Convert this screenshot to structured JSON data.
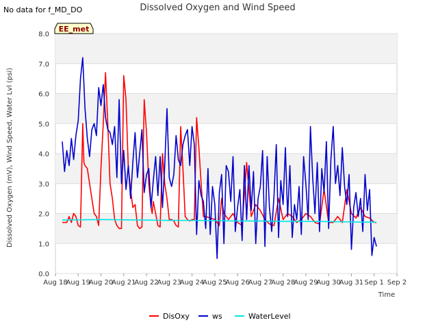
{
  "header": {
    "no_data_note": "No data for f_MD_DO",
    "badge": "EE_met"
  },
  "chart_data": {
    "type": "line",
    "title": "Dissolved Oxygen and Wind Speed",
    "xlabel": "Time",
    "ylabel": "Dissolved Oxygen (mV), Wind Speed, Water Lvl (psi)",
    "ylim": [
      0,
      8
    ],
    "xlim": [
      0,
      15
    ],
    "yticks": [
      "0.0",
      "1.0",
      "2.0",
      "3.0",
      "4.0",
      "5.0",
      "6.0",
      "7.0",
      "8.0"
    ],
    "xticks": [
      "Aug 18",
      "Aug 19",
      "Aug 20",
      "Aug 21",
      "Aug 22",
      "Aug 23",
      "Aug 24",
      "Aug 25",
      "Aug 26",
      "Aug 27",
      "Aug 28",
      "Aug 29",
      "Aug 30",
      "Aug 31",
      "Sep 1",
      "Sep 2"
    ],
    "grid": true,
    "legend_position": "bottom",
    "series": [
      {
        "name": "DisOxy",
        "color": "#ff0000",
        "x": [
          0.3,
          0.5,
          0.6,
          0.7,
          0.8,
          0.9,
          1.0,
          1.1,
          1.2,
          1.25,
          1.3,
          1.4,
          1.5,
          1.6,
          1.7,
          1.8,
          1.9,
          2.0,
          2.1,
          2.2,
          2.3,
          2.4,
          2.5,
          2.6,
          2.7,
          2.8,
          2.9,
          3.0,
          3.1,
          3.2,
          3.25,
          3.3,
          3.4,
          3.5,
          3.6,
          3.7,
          3.8,
          3.9,
          4.0,
          4.1,
          4.2,
          4.25,
          4.3,
          4.4,
          4.5,
          4.6,
          4.7,
          4.8,
          4.9,
          5.0,
          5.1,
          5.2,
          5.3,
          5.4,
          5.5,
          5.6,
          5.7,
          5.8,
          5.9,
          6.0,
          6.1,
          6.2,
          6.3,
          6.4,
          6.5,
          6.6,
          6.8,
          7.0,
          7.1,
          7.2,
          7.3,
          7.4,
          7.5,
          7.6,
          7.8,
          8.0,
          8.2,
          8.4,
          8.6,
          8.8,
          9.0,
          9.2,
          9.4,
          9.6,
          9.8,
          10.0,
          10.2,
          10.4,
          10.6,
          10.8,
          11.0,
          11.2,
          11.4,
          11.6,
          11.8,
          12.0,
          12.2,
          12.4,
          12.6,
          12.8,
          13.0,
          13.2,
          13.4,
          13.6,
          13.8,
          14.0,
          14.1
        ],
        "values": [
          1.7,
          1.7,
          1.9,
          1.7,
          2.0,
          1.9,
          1.6,
          1.55,
          5.0,
          3.7,
          3.6,
          3.5,
          3.0,
          2.5,
          2.0,
          1.9,
          1.6,
          3.5,
          5.0,
          6.7,
          5.0,
          3.0,
          2.5,
          1.8,
          1.6,
          1.5,
          1.5,
          6.6,
          5.8,
          3.5,
          3.2,
          2.8,
          2.2,
          2.3,
          1.6,
          1.5,
          1.55,
          5.8,
          4.7,
          3.0,
          2.2,
          2.0,
          2.4,
          2.0,
          1.6,
          1.55,
          4.0,
          3.0,
          2.5,
          1.8,
          1.8,
          1.75,
          1.6,
          1.55,
          4.9,
          3.5,
          1.9,
          1.8,
          1.75,
          1.8,
          1.8,
          5.2,
          4.2,
          3.0,
          1.9,
          1.9,
          1.85,
          1.8,
          1.7,
          1.6,
          2.5,
          2.0,
          1.9,
          1.8,
          2.0,
          1.7,
          1.6,
          3.7,
          1.9,
          2.3,
          2.1,
          1.8,
          1.65,
          1.6,
          2.5,
          1.8,
          2.0,
          1.9,
          1.7,
          1.8,
          2.0,
          1.9,
          1.7,
          1.65,
          2.8,
          1.7,
          1.7,
          1.9,
          1.7,
          2.8,
          2.0,
          1.85,
          2.2,
          1.9,
          1.85,
          1.7,
          1.7
        ]
      },
      {
        "name": "ws",
        "color": "#0000cc",
        "x": [
          0.3,
          0.4,
          0.5,
          0.6,
          0.7,
          0.8,
          0.9,
          1.0,
          1.1,
          1.2,
          1.3,
          1.4,
          1.5,
          1.6,
          1.7,
          1.8,
          1.9,
          2.0,
          2.1,
          2.2,
          2.3,
          2.4,
          2.5,
          2.6,
          2.7,
          2.8,
          2.9,
          3.0,
          3.1,
          3.2,
          3.3,
          3.4,
          3.5,
          3.6,
          3.7,
          3.8,
          3.9,
          4.0,
          4.1,
          4.2,
          4.3,
          4.4,
          4.5,
          4.6,
          4.7,
          4.8,
          4.9,
          5.0,
          5.1,
          5.2,
          5.3,
          5.4,
          5.5,
          5.6,
          5.7,
          5.8,
          5.9,
          6.0,
          6.1,
          6.2,
          6.3,
          6.4,
          6.5,
          6.6,
          6.7,
          6.8,
          6.9,
          7.0,
          7.1,
          7.2,
          7.3,
          7.4,
          7.5,
          7.6,
          7.7,
          7.8,
          7.9,
          8.0,
          8.1,
          8.2,
          8.3,
          8.4,
          8.5,
          8.6,
          8.7,
          8.8,
          8.9,
          9.0,
          9.1,
          9.2,
          9.3,
          9.4,
          9.5,
          9.6,
          9.7,
          9.8,
          9.9,
          10.0,
          10.1,
          10.2,
          10.3,
          10.4,
          10.5,
          10.6,
          10.7,
          10.8,
          10.9,
          11.0,
          11.1,
          11.2,
          11.3,
          11.4,
          11.5,
          11.6,
          11.7,
          11.8,
          11.9,
          12.0,
          12.1,
          12.2,
          12.3,
          12.4,
          12.5,
          12.6,
          12.7,
          12.8,
          12.9,
          13.0,
          13.1,
          13.2,
          13.3,
          13.4,
          13.5,
          13.6,
          13.7,
          13.8,
          13.9,
          14.0,
          14.1
        ],
        "values": [
          4.4,
          3.4,
          4.1,
          3.6,
          4.5,
          3.8,
          4.6,
          5.1,
          6.5,
          7.2,
          5.5,
          4.5,
          3.9,
          4.8,
          5.0,
          4.6,
          6.2,
          5.6,
          6.3,
          5.2,
          4.8,
          4.7,
          4.3,
          4.9,
          3.2,
          5.8,
          3.0,
          4.1,
          2.8,
          3.6,
          2.5,
          3.7,
          4.7,
          3.2,
          4.0,
          4.8,
          2.7,
          3.3,
          3.5,
          2.2,
          3.1,
          3.9,
          2.6,
          3.9,
          2.2,
          3.6,
          5.5,
          3.2,
          2.9,
          3.3,
          4.6,
          3.8,
          3.6,
          4.3,
          4.6,
          4.8,
          3.6,
          4.9,
          4.3,
          1.3,
          3.1,
          2.6,
          2.4,
          1.5,
          3.5,
          1.3,
          2.9,
          2.3,
          0.5,
          2.7,
          3.3,
          1.0,
          3.6,
          3.4,
          2.4,
          3.9,
          1.4,
          2.2,
          2.8,
          1.1,
          3.6,
          1.8,
          3.6,
          2.1,
          3.4,
          1.0,
          2.5,
          2.9,
          4.1,
          0.9,
          3.9,
          2.2,
          1.4,
          2.6,
          4.3,
          1.2,
          3.1,
          2.3,
          4.2,
          1.9,
          3.6,
          1.2,
          2.3,
          1.8,
          2.9,
          1.3,
          3.9,
          3.0,
          1.8,
          4.9,
          3.2,
          2.0,
          3.7,
          1.4,
          3.5,
          2.7,
          4.4,
          1.5,
          3.8,
          4.9,
          3.0,
          3.6,
          2.6,
          4.2,
          2.9,
          2.3,
          3.3,
          0.8,
          2.2,
          2.7,
          1.9,
          2.5,
          1.4,
          3.3,
          2.1,
          2.8,
          0.6,
          1.2,
          0.9
        ]
      },
      {
        "name": "WaterLevel",
        "color": "#00e5e5",
        "x": [
          0.3,
          1.0,
          2.0,
          3.0,
          4.0,
          5.0,
          6.0,
          7.0,
          8.0,
          9.0,
          10.0,
          11.0,
          12.0,
          13.0,
          14.0,
          14.1
        ],
        "values": [
          1.78,
          1.79,
          1.8,
          1.79,
          1.78,
          1.77,
          1.77,
          1.76,
          1.75,
          1.75,
          1.74,
          1.74,
          1.73,
          1.72,
          1.71,
          1.71
        ]
      }
    ]
  }
}
